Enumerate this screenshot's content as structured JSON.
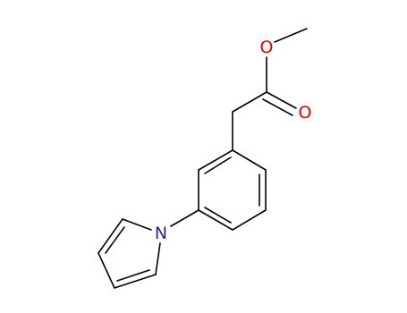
{
  "atoms": [
    {
      "label": "O"
    },
    {
      "label": "O"
    },
    {
      "label": "N"
    }
  ]
}
